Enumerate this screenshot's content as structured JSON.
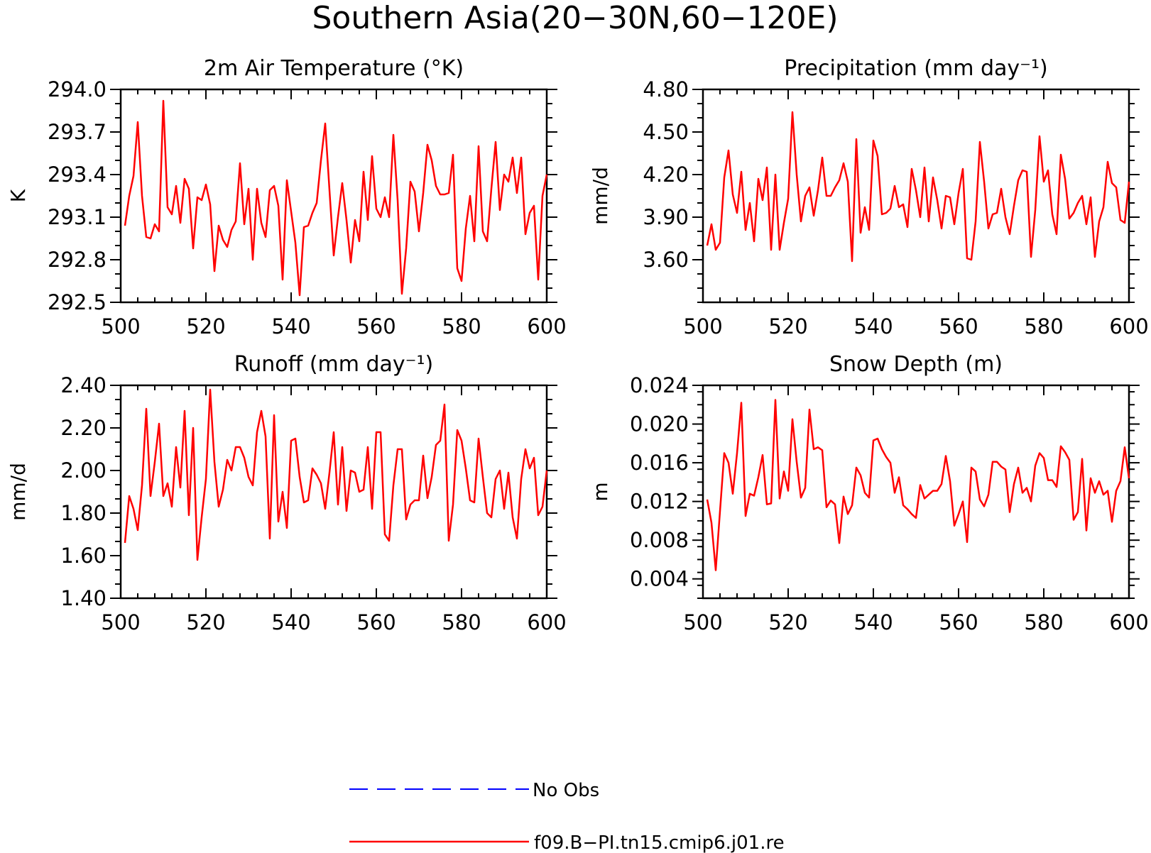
{
  "figure": {
    "title": "Southern Asia(20−30N,60−120E)"
  },
  "colors": {
    "model_line": "#ff0000",
    "obs_line": "#0000ff",
    "axes": "#000000"
  },
  "legend": [
    {
      "label": "No Obs",
      "style": "dashed",
      "color": "#0000ff"
    },
    {
      "label": "f09.B−PI.tn15.cmip6.j01.re",
      "style": "solid",
      "color": "#ff0000"
    }
  ],
  "chart_data": [
    {
      "type": "line",
      "title": "2m Air Temperature (°K)",
      "ylabel": "K",
      "xlim": [
        500,
        600
      ],
      "ylim": [
        292.5,
        294.0
      ],
      "xticks": [
        "500",
        "520",
        "540",
        "560",
        "580",
        "600"
      ],
      "yticks": [
        "292.5",
        "292.8",
        "293.1",
        "293.4",
        "293.7",
        "294.0"
      ],
      "series": [
        {
          "name": "f09.B−PI.tn15.cmip6.j01.re",
          "x_start": 501,
          "values": [
            293.04,
            293.25,
            293.39,
            293.77,
            293.25,
            292.96,
            292.95,
            293.05,
            293.0,
            293.92,
            293.17,
            293.12,
            293.32,
            293.06,
            293.37,
            293.3,
            292.88,
            293.24,
            293.22,
            293.33,
            293.19,
            292.72,
            293.04,
            292.94,
            292.89,
            293.01,
            293.07,
            293.48,
            293.05,
            293.3,
            292.8,
            293.3,
            293.06,
            292.96,
            293.29,
            293.32,
            293.18,
            292.66,
            293.36,
            293.14,
            292.92,
            292.55,
            293.03,
            293.04,
            293.13,
            293.2,
            293.5,
            293.76,
            293.29,
            292.83,
            293.1,
            293.34,
            293.08,
            292.78,
            293.08,
            292.93,
            293.42,
            293.08,
            293.53,
            293.16,
            293.1,
            293.24,
            293.1,
            293.68,
            293.22,
            292.56,
            292.88,
            293.35,
            293.28,
            293.0,
            293.27,
            293.61,
            293.5,
            293.32,
            293.26,
            293.26,
            293.27,
            293.54,
            292.74,
            292.65,
            293.02,
            293.25,
            292.93,
            293.6,
            293.0,
            292.93,
            293.3,
            293.63,
            293.15,
            293.4,
            293.35,
            293.52,
            293.27,
            293.52,
            292.98,
            293.13,
            293.18,
            292.66,
            293.25,
            293.4
          ]
        }
      ]
    },
    {
      "type": "line",
      "title": "Precipitation (mm day⁻¹)",
      "ylabel": "mm/d",
      "xlim": [
        500,
        600
      ],
      "ylim": [
        3.3,
        4.8
      ],
      "xticks": [
        "500",
        "520",
        "540",
        "560",
        "580",
        "600"
      ],
      "yticks": [
        "3.60",
        "3.90",
        "4.20",
        "4.50",
        "4.80"
      ],
      "series": [
        {
          "name": "f09.B−PI.tn15.cmip6.j01.re",
          "x_start": 501,
          "values": [
            3.7,
            3.85,
            3.67,
            3.72,
            4.18,
            4.37,
            4.06,
            3.93,
            4.22,
            3.81,
            4.0,
            3.73,
            4.17,
            4.02,
            4.25,
            3.67,
            4.2,
            3.67,
            3.86,
            4.03,
            4.64,
            4.2,
            3.87,
            4.05,
            4.11,
            3.91,
            4.09,
            4.32,
            4.05,
            4.05,
            4.11,
            4.16,
            4.28,
            4.15,
            3.59,
            4.45,
            3.79,
            3.97,
            3.81,
            4.44,
            4.33,
            3.92,
            3.93,
            3.96,
            4.12,
            3.97,
            3.99,
            3.83,
            4.24,
            4.09,
            3.9,
            4.25,
            3.87,
            4.18,
            4.02,
            3.82,
            4.05,
            4.04,
            3.85,
            4.07,
            4.24,
            3.61,
            3.6,
            3.87,
            4.43,
            4.15,
            3.82,
            3.92,
            3.93,
            4.1,
            3.9,
            3.78,
            3.98,
            4.16,
            4.23,
            4.22,
            3.62,
            3.95,
            4.47,
            4.15,
            4.23,
            3.92,
            3.78,
            4.34,
            4.17,
            3.89,
            3.93,
            4.0,
            4.05,
            3.85,
            4.04,
            3.62,
            3.87,
            3.97,
            4.29,
            4.14,
            4.11,
            3.88,
            3.86,
            4.15
          ]
        }
      ]
    },
    {
      "type": "line",
      "title": "Runoff (mm day⁻¹)",
      "ylabel": "mm/d",
      "xlim": [
        500,
        600
      ],
      "ylim": [
        1.4,
        2.4
      ],
      "xticks": [
        "500",
        "520",
        "540",
        "560",
        "580",
        "600"
      ],
      "yticks": [
        "1.40",
        "1.60",
        "1.80",
        "2.00",
        "2.20",
        "2.40"
      ],
      "series": [
        {
          "name": "f09.B−PI.tn15.cmip6.j01.re",
          "x_start": 501,
          "values": [
            1.66,
            1.88,
            1.82,
            1.72,
            1.93,
            2.29,
            1.88,
            2.04,
            2.22,
            1.88,
            1.94,
            1.83,
            2.11,
            1.92,
            2.28,
            1.79,
            2.2,
            1.58,
            1.78,
            1.96,
            2.38,
            2.04,
            1.83,
            1.91,
            2.05,
            2.0,
            2.11,
            2.11,
            2.06,
            1.97,
            1.93,
            2.18,
            2.28,
            2.16,
            1.68,
            2.26,
            1.76,
            1.9,
            1.73,
            2.14,
            2.15,
            1.97,
            1.85,
            1.86,
            2.01,
            1.98,
            1.94,
            1.82,
            1.99,
            2.18,
            1.84,
            2.11,
            1.81,
            2.0,
            1.99,
            1.9,
            1.91,
            2.11,
            1.82,
            2.18,
            2.18,
            1.7,
            1.67,
            1.93,
            2.1,
            2.1,
            1.77,
            1.84,
            1.86,
            1.86,
            2.07,
            1.87,
            1.97,
            2.12,
            2.14,
            2.31,
            1.67,
            1.84,
            2.19,
            2.14,
            2.01,
            1.86,
            1.85,
            2.15,
            1.97,
            1.8,
            1.78,
            1.96,
            2.0,
            1.82,
            1.99,
            1.78,
            1.68,
            1.96,
            2.1,
            2.01,
            2.06,
            1.79,
            1.83,
            2.0
          ]
        }
      ]
    },
    {
      "type": "line",
      "title": "Snow Depth (m)",
      "ylabel": "m",
      "xlim": [
        500,
        600
      ],
      "ylim": [
        0.002,
        0.024
      ],
      "xticks": [
        "500",
        "520",
        "540",
        "560",
        "580",
        "600"
      ],
      "yticks": [
        "0.004",
        "0.008",
        "0.012",
        "0.016",
        "0.020",
        "0.024"
      ],
      "series": [
        {
          "name": "f09.B−PI.tn15.cmip6.j01.re",
          "x_start": 501,
          "values": [
            0.0122,
            0.0098,
            0.0049,
            0.011,
            0.017,
            0.016,
            0.0128,
            0.017,
            0.0222,
            0.0105,
            0.0128,
            0.0126,
            0.0145,
            0.0168,
            0.0117,
            0.0118,
            0.0225,
            0.0123,
            0.0151,
            0.0131,
            0.0205,
            0.0161,
            0.0124,
            0.0134,
            0.0215,
            0.0174,
            0.0176,
            0.0173,
            0.0114,
            0.0121,
            0.0117,
            0.0077,
            0.0125,
            0.0107,
            0.0116,
            0.0155,
            0.0147,
            0.0129,
            0.0124,
            0.0183,
            0.0185,
            0.0174,
            0.0166,
            0.016,
            0.0129,
            0.0145,
            0.0116,
            0.0112,
            0.0107,
            0.0103,
            0.0137,
            0.0123,
            0.0127,
            0.0131,
            0.0131,
            0.0138,
            0.0167,
            0.0141,
            0.0095,
            0.0107,
            0.012,
            0.0078,
            0.0155,
            0.0151,
            0.0122,
            0.0115,
            0.0127,
            0.0161,
            0.0161,
            0.0156,
            0.0153,
            0.0109,
            0.0138,
            0.0155,
            0.0129,
            0.0134,
            0.012,
            0.0157,
            0.017,
            0.0165,
            0.0142,
            0.0142,
            0.0135,
            0.0177,
            0.0171,
            0.0163,
            0.0101,
            0.0109,
            0.0164,
            0.009,
            0.0144,
            0.0129,
            0.0141,
            0.0127,
            0.0131,
            0.0099,
            0.0131,
            0.0141,
            0.0176,
            0.0144
          ]
        }
      ]
    }
  ]
}
